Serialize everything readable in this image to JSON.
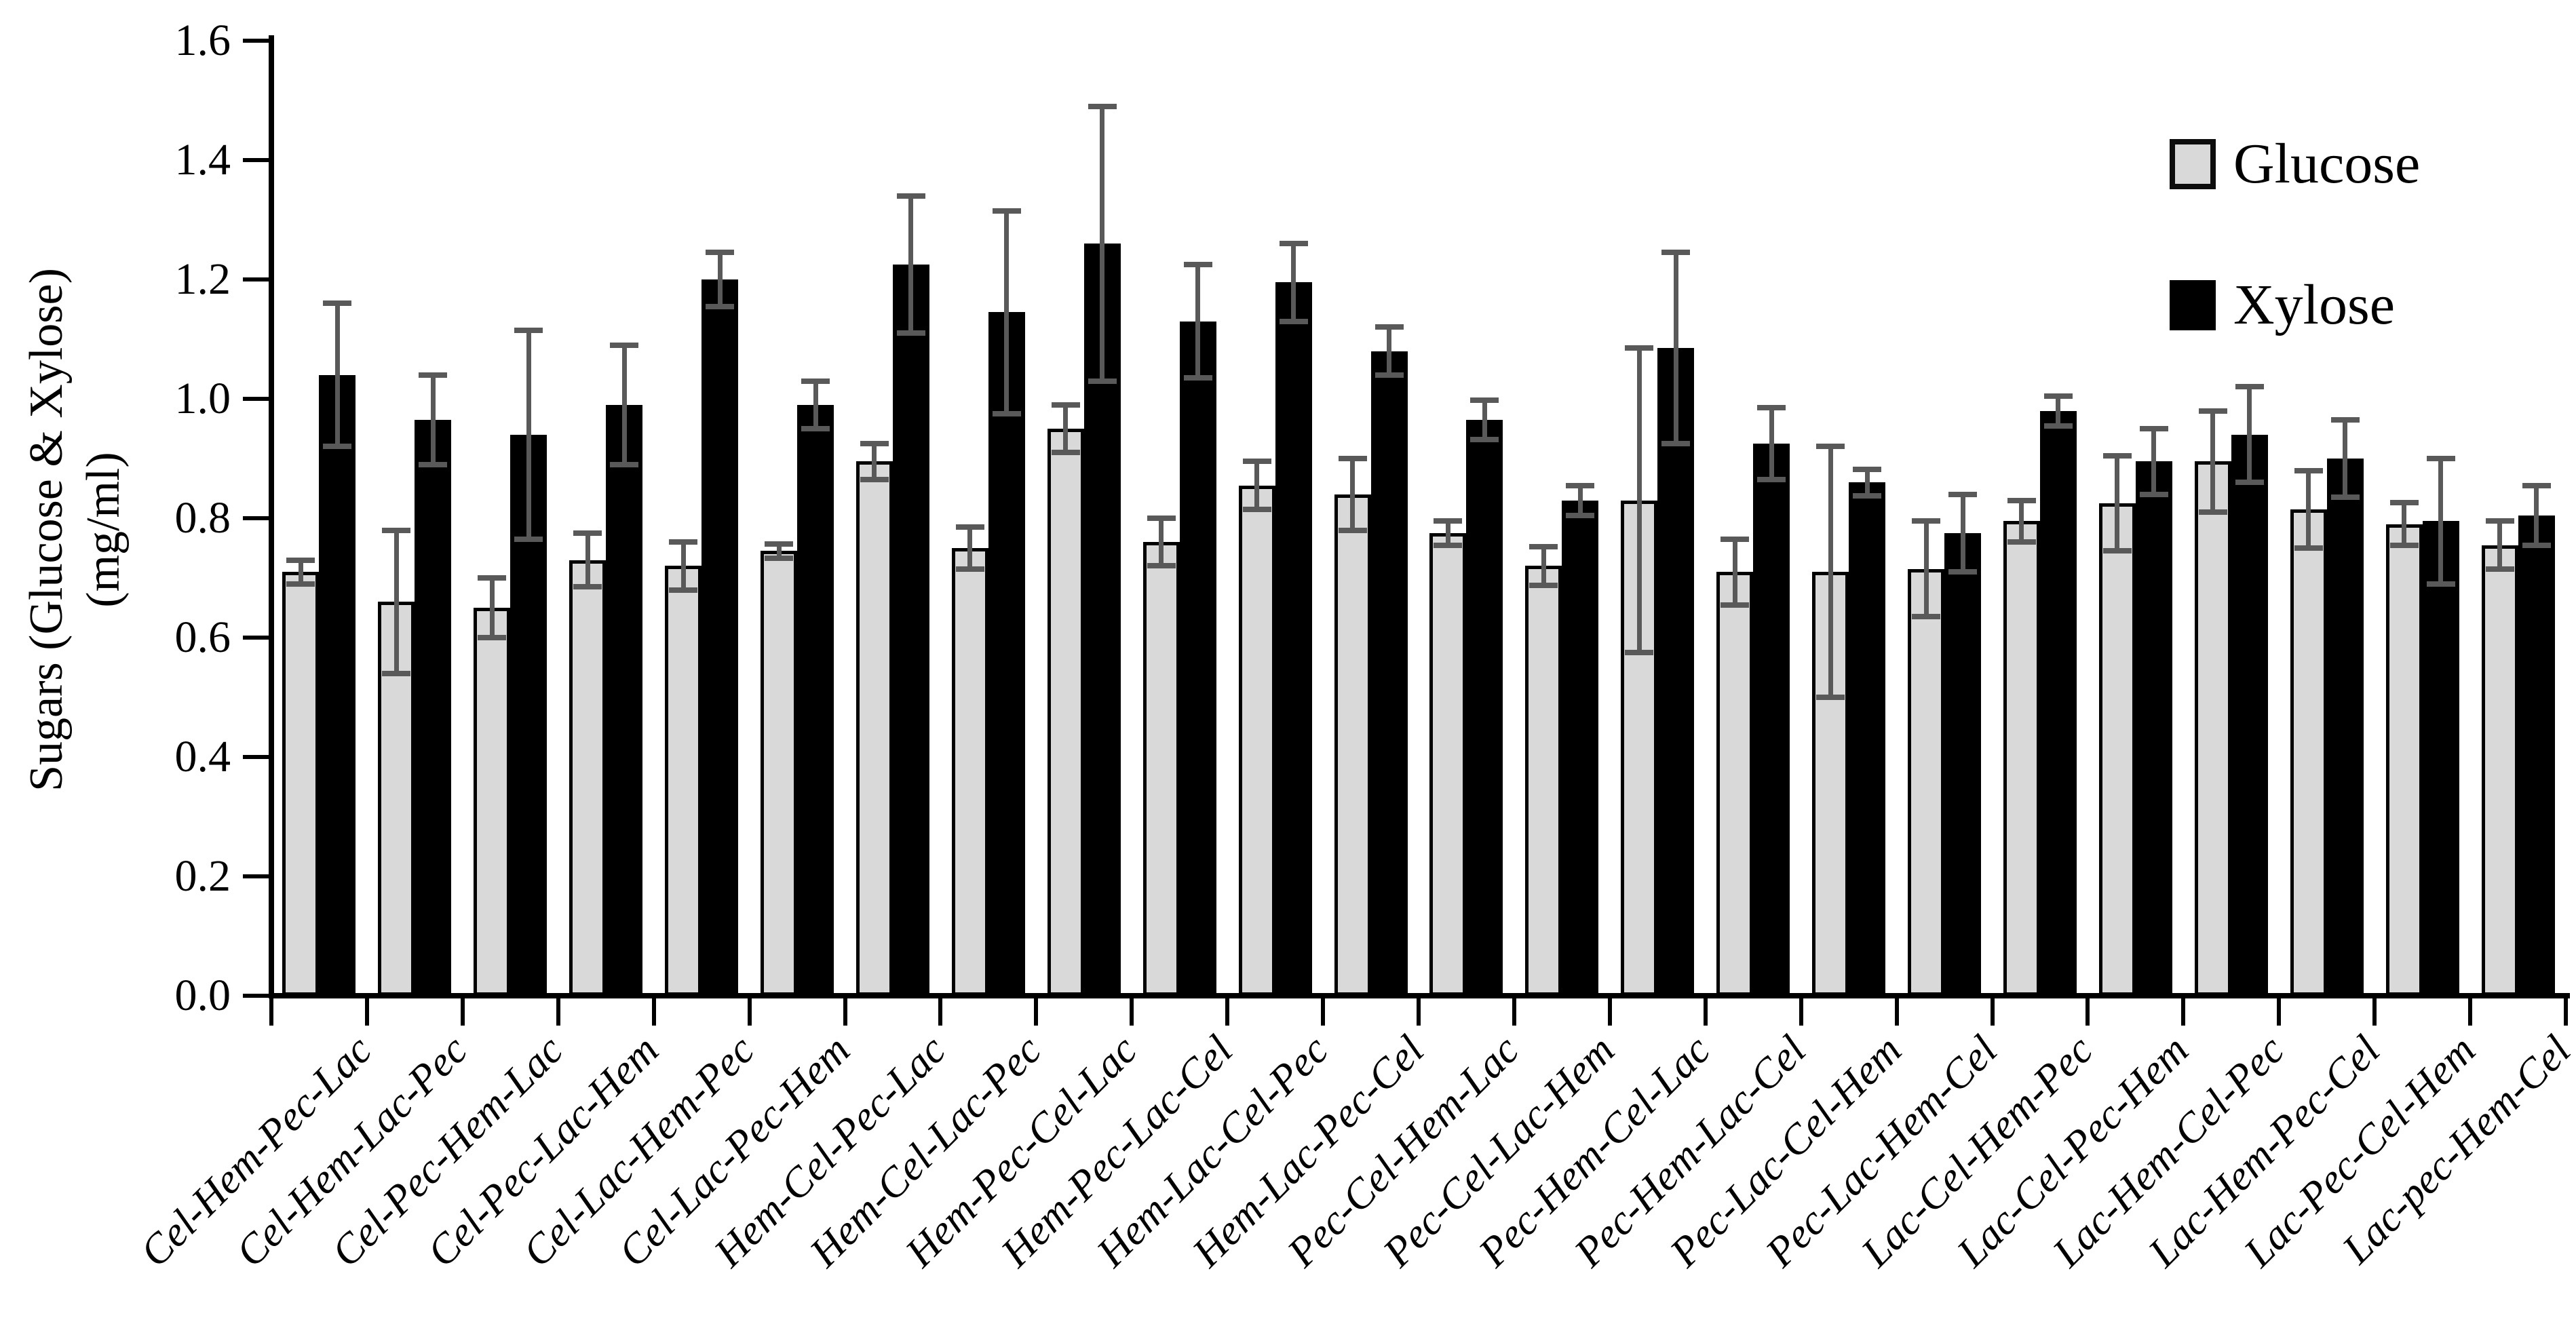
{
  "chart_data": {
    "type": "bar",
    "ylabel_line1": "Sugars (Glucose & Xylose)",
    "ylabel_line2": "(mg/ml)",
    "ylim": [
      0.0,
      1.6
    ],
    "ytick_labels": [
      "0.0",
      "0.2",
      "0.4",
      "0.6",
      "0.8",
      "1.0",
      "1.2",
      "1.4",
      "1.6"
    ],
    "grid": false,
    "legend_position": "top-right",
    "error_bar_color": "#595959",
    "categories": [
      "Cel-Hem-Pec-Lac",
      "Cel-Hem-Lac-Pec",
      "Cel-Pec-Hem-Lac",
      "Cel-Pec-Lac-Hem",
      "Cel-Lac-Hem-Pec",
      "Cel-Lac-Pec-Hem",
      "Hem-Cel-Pec-Lac",
      "Hem-Cel-Lac-Pec",
      "Hem-Pec-Cel-Lac",
      "Hem-Pec-Lac-Cel",
      "Hem-Lac-Cel-Pec",
      "Hem-Lac-Pec-Cel",
      "Pec-Cel-Hem-Lac",
      "Pec-Cel-Lac-Hem",
      "Pec-Hem-Cel-Lac",
      "Pec-Hem-Lac-Cel",
      "Pec-Lac-Cel-Hem",
      "Pec-Lac-Hem-Cel",
      "Lac-Cel-Hem-Pec",
      "Lac-Cel-Pec-Hem",
      "Lac-Hem-Cel-Pec",
      "Lac-Hem-Pec-Cel",
      "Lac-Pec-Cel-Hem",
      "Lac-pec-Hem-Cel"
    ],
    "series": [
      {
        "name": "Glucose",
        "color": "#d9d9d9",
        "border_color": "#000000",
        "values": [
          0.71,
          0.66,
          0.65,
          0.73,
          0.72,
          0.745,
          0.895,
          0.75,
          0.95,
          0.76,
          0.855,
          0.84,
          0.775,
          0.72,
          0.83,
          0.71,
          0.71,
          0.715,
          0.795,
          0.825,
          0.895,
          0.815,
          0.79,
          0.755
        ],
        "errors": [
          0.02,
          0.12,
          0.05,
          0.045,
          0.04,
          0.012,
          0.03,
          0.035,
          0.04,
          0.04,
          0.04,
          0.06,
          0.02,
          0.032,
          0.255,
          0.055,
          0.21,
          0.08,
          0.035,
          0.08,
          0.085,
          0.065,
          0.036,
          0.04
        ]
      },
      {
        "name": "Xylose",
        "color": "#000000",
        "border_color": "#000000",
        "values": [
          1.04,
          0.965,
          0.94,
          0.99,
          1.2,
          0.99,
          1.225,
          1.145,
          1.26,
          1.13,
          1.195,
          1.08,
          0.965,
          0.83,
          1.085,
          0.925,
          0.86,
          0.775,
          0.98,
          0.895,
          0.94,
          0.9,
          0.795,
          0.805
        ],
        "errors": [
          0.12,
          0.075,
          0.175,
          0.1,
          0.045,
          0.04,
          0.115,
          0.17,
          0.23,
          0.095,
          0.065,
          0.04,
          0.033,
          0.025,
          0.16,
          0.06,
          0.022,
          0.065,
          0.025,
          0.055,
          0.08,
          0.065,
          0.105,
          0.05
        ]
      }
    ]
  }
}
